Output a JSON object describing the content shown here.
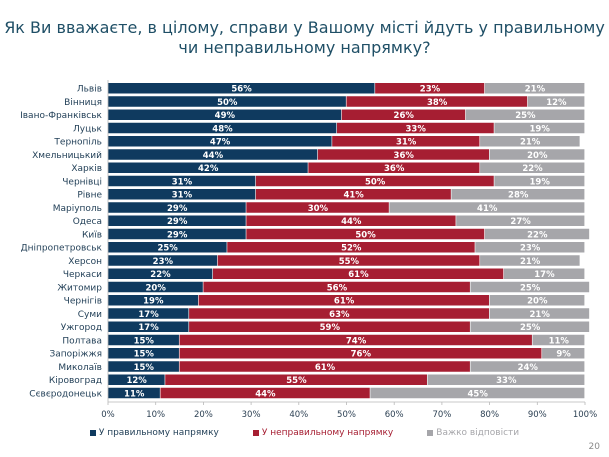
{
  "chart_data": {
    "type": "bar",
    "orientation": "horizontal",
    "stacked": true,
    "title": "Як Ви вважаєте, в цілому, справи у Вашому місті йдуть у правильному чи неправильному напрямку?",
    "xlabel": "",
    "ylabel": "",
    "xlim": [
      0,
      100
    ],
    "x_ticks": [
      "0%",
      "10%",
      "20%",
      "30%",
      "40%",
      "50%",
      "60%",
      "70%",
      "80%",
      "90%",
      "100%"
    ],
    "categories": [
      "Львів",
      "Вінниця",
      "Івано-Франківськ",
      "Луцьк",
      "Тернопіль",
      "Хмельницький",
      "Харків",
      "Чернівці",
      "Рівне",
      "Маріуполь",
      "Одеса",
      "Київ",
      "Дніпропетровськ",
      "Херсон",
      "Черкаси",
      "Житомир",
      "Чернігів",
      "Суми",
      "Ужгород",
      "Полтава",
      "Запоріжжя",
      "Миколаїв",
      "Кіровоград",
      "Сєвєродонецьк"
    ],
    "series": [
      {
        "name": "У правильному напрямку",
        "color": "#0f3a5f",
        "values": [
          56,
          50,
          49,
          48,
          47,
          44,
          42,
          31,
          31,
          29,
          29,
          29,
          25,
          23,
          22,
          20,
          19,
          17,
          17,
          15,
          15,
          15,
          12,
          11
        ]
      },
      {
        "name": "У неправильному напрямку",
        "color": "#a61e32",
        "values": [
          23,
          38,
          26,
          33,
          31,
          36,
          36,
          50,
          41,
          30,
          44,
          50,
          52,
          55,
          61,
          56,
          61,
          63,
          59,
          74,
          76,
          61,
          55,
          44
        ]
      },
      {
        "name": "Важко відповісти",
        "color": "#a6a6aa",
        "values": [
          21,
          12,
          25,
          19,
          21,
          20,
          22,
          19,
          28,
          41,
          27,
          22,
          23,
          21,
          17,
          25,
          20,
          21,
          25,
          11,
          9,
          24,
          33,
          45
        ]
      }
    ],
    "legend_position": "bottom",
    "grid": false
  },
  "page_number": "20"
}
